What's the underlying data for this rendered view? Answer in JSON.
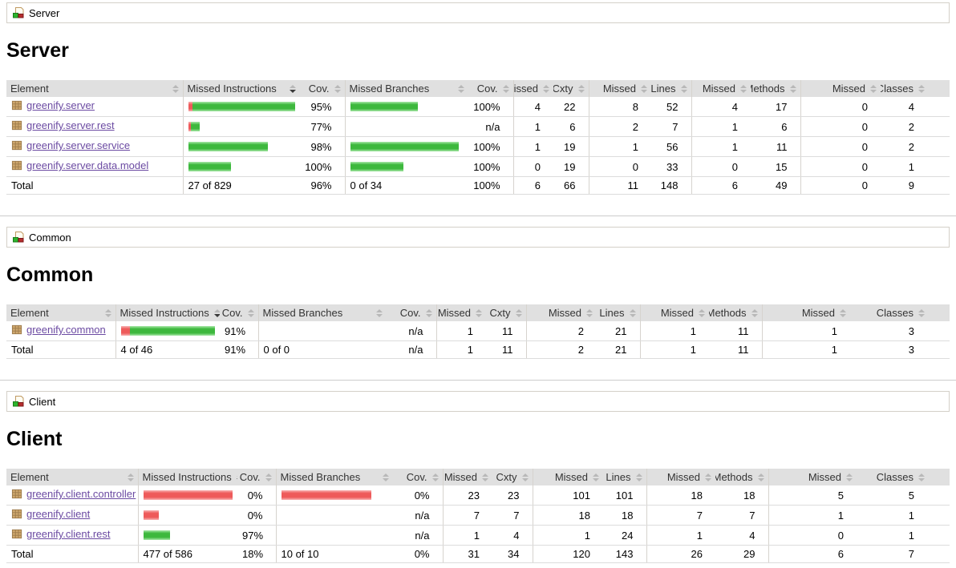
{
  "colors": {
    "covered_green": "#3db83d",
    "missed_red": "#ee5a5a",
    "link_purple": "#6b4aa2",
    "header_bg": "#e0e0e0",
    "grid_border": "#d6d3ce"
  },
  "columns": {
    "element": "Element",
    "missed_instructions": "Missed Instructions",
    "cov": "Cov.",
    "missed_branches": "Missed Branches",
    "missed": "Missed",
    "cxty": "Cxty",
    "lines": "Lines",
    "methods": "Methods",
    "classes": "Classes"
  },
  "sections": [
    {
      "breadcrumb": "Server",
      "title": "Server",
      "rows": [
        {
          "name": "greenify.server",
          "mi_missed_w": 5,
          "mi_covered_w": 128,
          "mi_cov": "95%",
          "mb_missed_w": 0,
          "mb_covered_w": 84,
          "mb_cov": "100%",
          "missed_cxty": "4",
          "cxty": "22",
          "missed_lines": "8",
          "lines": "52",
          "missed_methods": "4",
          "methods": "17",
          "missed_classes": "0",
          "classes": "4"
        },
        {
          "name": "greenify.server.rest",
          "mi_missed_w": 3,
          "mi_covered_w": 11,
          "mi_cov": "77%",
          "mb_missed_w": 0,
          "mb_covered_w": 0,
          "mb_cov": "n/a",
          "missed_cxty": "1",
          "cxty": "6",
          "missed_lines": "2",
          "lines": "7",
          "missed_methods": "1",
          "methods": "6",
          "missed_classes": "0",
          "classes": "2"
        },
        {
          "name": "greenify.server.service",
          "mi_missed_w": 0,
          "mi_covered_w": 99,
          "mi_cov": "98%",
          "mb_missed_w": 0,
          "mb_covered_w": 135,
          "mb_cov": "100%",
          "missed_cxty": "1",
          "cxty": "19",
          "missed_lines": "1",
          "lines": "56",
          "missed_methods": "1",
          "methods": "11",
          "missed_classes": "0",
          "classes": "2"
        },
        {
          "name": "greenify.server.data.model",
          "mi_missed_w": 0,
          "mi_covered_w": 53,
          "mi_cov": "100%",
          "mb_missed_w": 0,
          "mb_covered_w": 66,
          "mb_cov": "100%",
          "missed_cxty": "0",
          "cxty": "19",
          "missed_lines": "0",
          "lines": "33",
          "missed_methods": "0",
          "methods": "15",
          "missed_classes": "0",
          "classes": "1"
        }
      ],
      "total": {
        "label": "Total",
        "mi": "27 of 829",
        "mi_cov": "96%",
        "mb": "0 of 34",
        "mb_cov": "100%",
        "missed_cxty": "6",
        "cxty": "66",
        "missed_lines": "11",
        "lines": "148",
        "missed_methods": "6",
        "methods": "49",
        "missed_classes": "0",
        "classes": "9"
      }
    },
    {
      "breadcrumb": "Common",
      "title": "Common",
      "rows": [
        {
          "name": "greenify.common",
          "mi_missed_w": 11,
          "mi_covered_w": 106,
          "mi_cov": "91%",
          "mb_missed_w": 0,
          "mb_covered_w": 0,
          "mb_cov": "n/a",
          "missed_cxty": "1",
          "cxty": "11",
          "missed_lines": "2",
          "lines": "21",
          "missed_methods": "1",
          "methods": "11",
          "missed_classes": "1",
          "classes": "3"
        }
      ],
      "total": {
        "label": "Total",
        "mi": "4 of 46",
        "mi_cov": "91%",
        "mb": "0 of 0",
        "mb_cov": "n/a",
        "missed_cxty": "1",
        "cxty": "11",
        "missed_lines": "2",
        "lines": "21",
        "missed_methods": "1",
        "methods": "11",
        "missed_classes": "1",
        "classes": "3"
      }
    },
    {
      "breadcrumb": "Client",
      "title": "Client",
      "rows": [
        {
          "name": "greenify.client.controller",
          "mi_missed_w": 112,
          "mi_covered_w": 0,
          "mi_cov": "0%",
          "mb_missed_w": 112,
          "mb_covered_w": 0,
          "mb_cov": "0%",
          "missed_cxty": "23",
          "cxty": "23",
          "missed_lines": "101",
          "lines": "101",
          "missed_methods": "18",
          "methods": "18",
          "missed_classes": "5",
          "classes": "5"
        },
        {
          "name": "greenify.client",
          "mi_missed_w": 19,
          "mi_covered_w": 0,
          "mi_cov": "0%",
          "mb_missed_w": 0,
          "mb_covered_w": 0,
          "mb_cov": "n/a",
          "missed_cxty": "7",
          "cxty": "7",
          "missed_lines": "18",
          "lines": "18",
          "missed_methods": "7",
          "methods": "7",
          "missed_classes": "1",
          "classes": "1"
        },
        {
          "name": "greenify.client.rest",
          "mi_missed_w": 0,
          "mi_covered_w": 33,
          "mi_cov": "97%",
          "mb_missed_w": 0,
          "mb_covered_w": 0,
          "mb_cov": "n/a",
          "missed_cxty": "1",
          "cxty": "4",
          "missed_lines": "1",
          "lines": "24",
          "missed_methods": "1",
          "methods": "4",
          "missed_classes": "0",
          "classes": "1"
        }
      ],
      "total": {
        "label": "Total",
        "mi": "477 of 586",
        "mi_cov": "18%",
        "mb": "10 of 10",
        "mb_cov": "0%",
        "missed_cxty": "31",
        "cxty": "34",
        "missed_lines": "120",
        "lines": "143",
        "missed_methods": "26",
        "methods": "29",
        "missed_classes": "6",
        "classes": "7"
      }
    }
  ]
}
